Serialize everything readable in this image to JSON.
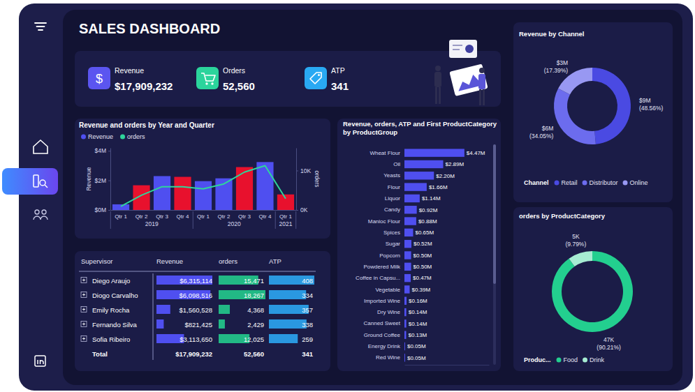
{
  "header": {
    "title": "SALES DASHBOARD"
  },
  "kpis": [
    {
      "label": "Revenue",
      "value": "$17,909,232",
      "icon": "$"
    },
    {
      "label": "Orders",
      "value": "52,560"
    },
    {
      "label": "ATP",
      "value": "341"
    }
  ],
  "chart_data": [
    {
      "type": "bar",
      "title": "Revenue and orders by Year and Quarter",
      "categories": [
        "Qtr 1",
        "Qtr 2",
        "Qtr 3",
        "Qtr 4",
        "Qtr 1",
        "Qtr 2",
        "Qtr 3",
        "Qtr 4",
        "Qtr 1"
      ],
      "category_groups": [
        "2019",
        "2019",
        "2019",
        "2019",
        "2020",
        "2020",
        "2020",
        "2020",
        "2021"
      ],
      "y_label": "Revenue",
      "y2_label": "orders",
      "ylim": [
        0,
        4200000
      ],
      "yticks": [
        {
          "value": 0,
          "label": "$0M"
        },
        {
          "value": 2000000,
          "label": "$2M"
        },
        {
          "value": 4000000,
          "label": "$4M"
        }
      ],
      "y2lim": [
        0,
        15750
      ],
      "y2ticks": [
        {
          "value": 0,
          "label": "0K"
        },
        {
          "value": 10000,
          "label": "10K"
        }
      ],
      "grid": false,
      "legend": "top-left",
      "series": [
        {
          "name": "Revenue",
          "type": "bar",
          "color": "#4f4ff0",
          "colors": [
            "#4f4ff0",
            "#e8112d",
            "#4f4ff0",
            "#e8112d",
            "#4f4ff0",
            "#4f4ff0",
            "#e8112d",
            "#4f4ff0",
            "#e8112d"
          ],
          "values": [
            380000,
            1670000,
            2290000,
            2240000,
            1950000,
            2140000,
            2900000,
            3240000,
            1050000
          ]
        },
        {
          "name": "orders",
          "type": "line",
          "axis": "y2",
          "color": "#2fd59b",
          "values": [
            900,
            3750,
            5900,
            5900,
            5360,
            6600,
            9600,
            11250,
            2860
          ]
        }
      ]
    },
    {
      "type": "bar",
      "orientation": "horizontal",
      "title": "Revenue, orders, ATP and First ProductCategory by ProductGroup",
      "categories": [
        "Wheat Flour",
        "Oil",
        "Yeasts",
        "Flour",
        "Liquor",
        "Candy",
        "Manioc Flour",
        "Spices",
        "Sugar",
        "Popcorn",
        "Powdered Milk",
        "Coffee in Capsu...",
        "Vegetable",
        "Imported Wine",
        "Dry Wine",
        "Canned Sweet",
        "Ground Coffee",
        "Energy Drink",
        "Red Wine"
      ],
      "values": [
        4470000,
        2890000,
        2200000,
        1660000,
        1140000,
        920000,
        880000,
        650000,
        520000,
        500000,
        500000,
        470000,
        390000,
        160000,
        140000,
        140000,
        130000,
        50000,
        50000
      ],
      "value_labels": [
        "$4.47M",
        "$2.89M",
        "$2.20M",
        "$1.66M",
        "$1.14M",
        "$0.92M",
        "$0.88M",
        "$0.65M",
        "$0.52M",
        "$0.50M",
        "$0.50M",
        "$0.47M",
        "$0.39M",
        "$0.16M",
        "$0.14M",
        "$0.14M",
        "$0.13M",
        "$0.05M",
        "$0.05M"
      ],
      "color": "#4f4ff0",
      "xlim": [
        0,
        6300000
      ],
      "data_labels": true,
      "tick_labels": "y"
    },
    {
      "type": "pie",
      "title": "Revenue by Channel",
      "legend_title": "Channel",
      "legend": "bottom",
      "data_labels": true,
      "categories": [
        "Retail",
        "Distributor",
        "Online"
      ],
      "values": [
        48.56,
        34.05,
        17.39
      ],
      "value_labels": [
        "(48.56%)",
        "(34.05%)",
        "(17.39%)"
      ],
      "amounts": [
        9000000,
        6000000,
        3000000
      ],
      "amount_labels": [
        "$9M",
        "$6M",
        "$3M"
      ],
      "colors": [
        "#4a4ae2",
        "#6c6cee",
        "#9898f2"
      ]
    },
    {
      "type": "pie",
      "title": "orders by ProductCategory",
      "legend_title": "Produc...",
      "legend": "bottom",
      "data_labels": true,
      "categories": [
        "Food",
        "Drink"
      ],
      "values": [
        90.21,
        9.79
      ],
      "value_labels": [
        "(90.21%)",
        "(9.79%)"
      ],
      "amounts": [
        47000,
        5000
      ],
      "amount_labels": [
        "47K",
        "5K"
      ],
      "colors": [
        "#23cf8f",
        "#a6ecd2"
      ]
    }
  ],
  "table": {
    "columns": [
      "Supervisor",
      "Revenue",
      "orders",
      "ATP"
    ],
    "rows": [
      {
        "supervisor": "Diego Araujo",
        "revenue": 6315114,
        "revenue_label": "$6,315,114",
        "orders": 15471,
        "orders_label": "15,471",
        "atp": 408
      },
      {
        "supervisor": "Diogo Carvalho",
        "revenue": 6098516,
        "revenue_label": "$6,098,516",
        "orders": 18267,
        "orders_label": "18,267",
        "atp": 334
      },
      {
        "supervisor": "Emily Rocha",
        "revenue": 1560528,
        "revenue_label": "$1,560,528",
        "orders": 4368,
        "orders_label": "4,368",
        "atp": 357
      },
      {
        "supervisor": "Fernando Silva",
        "revenue": 821425,
        "revenue_label": "$821,425",
        "orders": 2429,
        "orders_label": "2,429",
        "atp": 338
      },
      {
        "supervisor": "Sofia Ribeiro",
        "revenue": 3113650,
        "revenue_label": "$3,113,650",
        "orders": 12025,
        "orders_label": "12,025",
        "atp": 259
      }
    ],
    "total": {
      "label": "Total",
      "revenue": "$17,909,232",
      "orders": "52,560",
      "atp": "341"
    }
  }
}
